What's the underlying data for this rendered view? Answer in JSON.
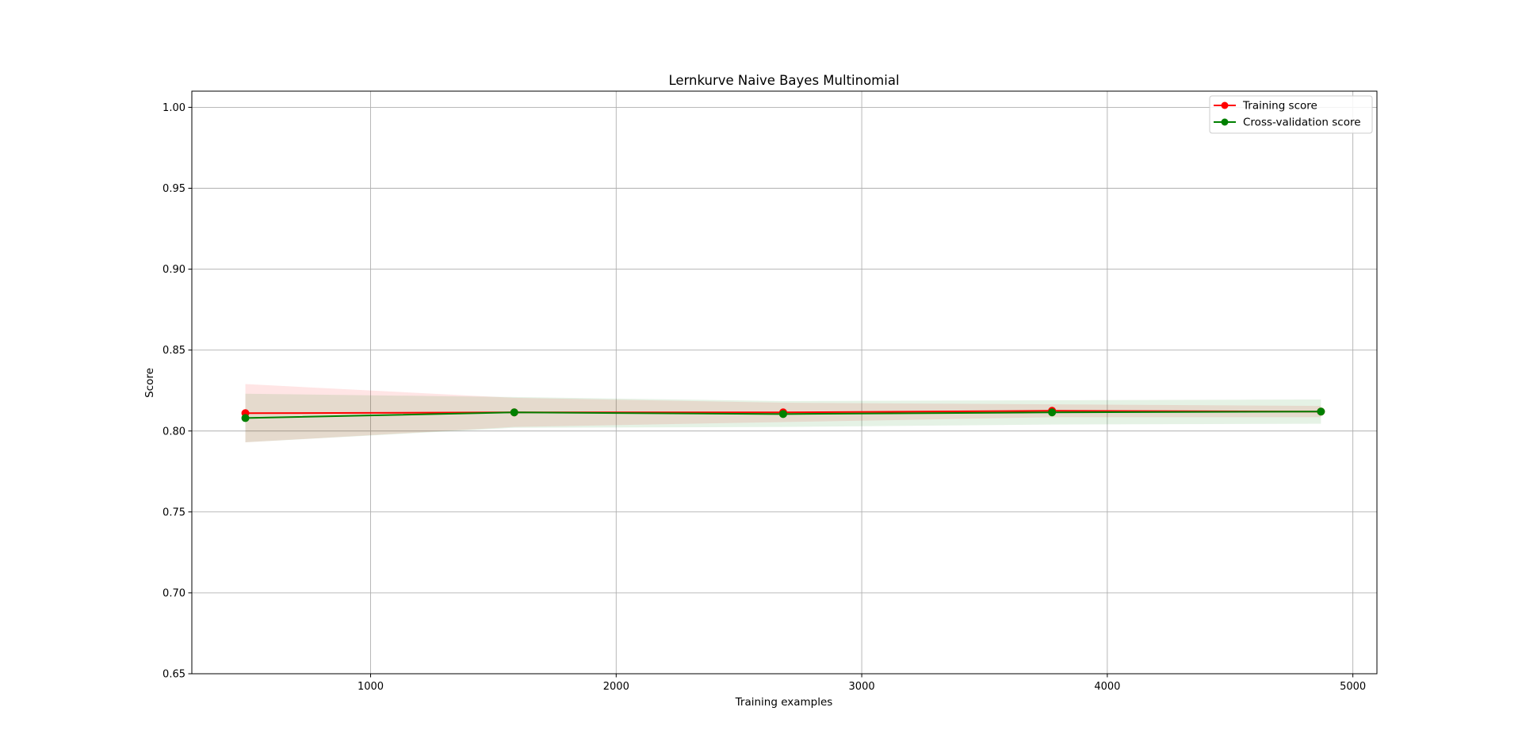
{
  "chart_data": {
    "type": "line",
    "title": "Lernkurve Naive Bayes Multinomial",
    "xlabel": "Training examples",
    "ylabel": "Score",
    "xlim": [
      272,
      5098
    ],
    "ylim": [
      0.65,
      1.01
    ],
    "xticks": [
      1000,
      2000,
      3000,
      4000,
      5000
    ],
    "xtick_labels": [
      "1000",
      "2000",
      "3000",
      "4000",
      "5000"
    ],
    "yticks": [
      0.65,
      0.7,
      0.75,
      0.8,
      0.85,
      0.9,
      0.95,
      1.0
    ],
    "ytick_labels": [
      "0.65",
      "0.70",
      "0.75",
      "0.80",
      "0.85",
      "0.90",
      "0.95",
      "1.00"
    ],
    "grid": true,
    "legend_position": "top-right",
    "x": [
      490,
      1585,
      2680,
      3775,
      4870
    ],
    "series": [
      {
        "name": "Training score",
        "color": "#ff0000",
        "band_color": "#ff0000",
        "values": [
          0.811,
          0.8115,
          0.8115,
          0.8125,
          0.812
        ],
        "band_upper": [
          0.829,
          0.8205,
          0.8175,
          0.8165,
          0.8155
        ],
        "band_lower": [
          0.793,
          0.8025,
          0.8055,
          0.8085,
          0.8085
        ]
      },
      {
        "name": "Cross-validation score",
        "color": "#008000",
        "band_color": "#008000",
        "values": [
          0.808,
          0.8115,
          0.8105,
          0.8115,
          0.812
        ],
        "band_upper": [
          0.823,
          0.821,
          0.8185,
          0.819,
          0.8195
        ],
        "band_lower": [
          0.793,
          0.802,
          0.8025,
          0.804,
          0.8045
        ]
      }
    ]
  }
}
